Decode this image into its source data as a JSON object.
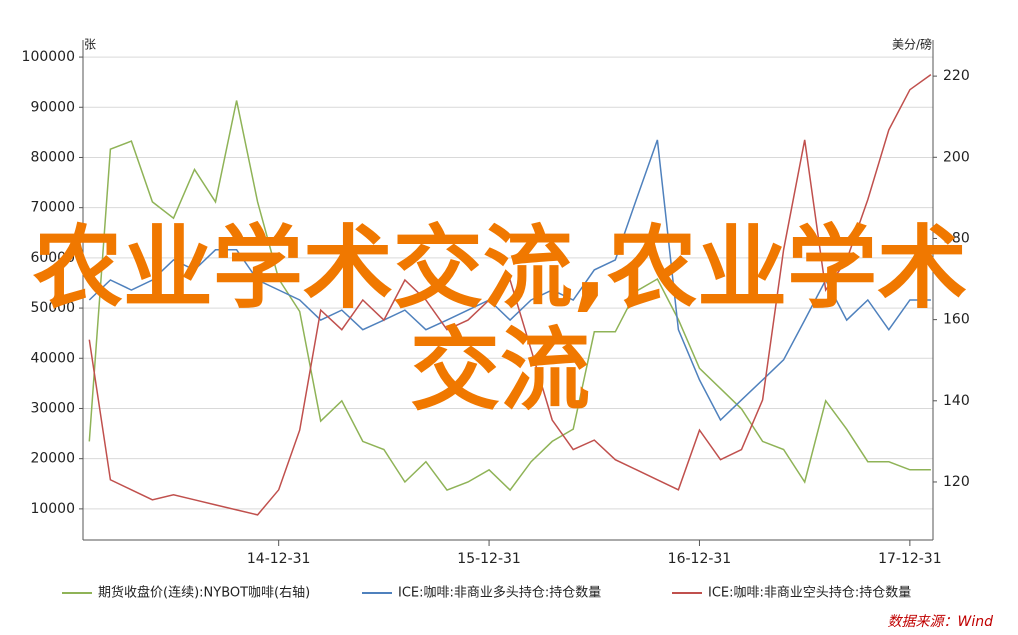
{
  "chart_data": {
    "type": "line",
    "y_label": "张",
    "y2_label": "美分/磅",
    "overlay": "农业学术交流,农业学术交流",
    "source": "数据来源：Wind",
    "x": [
      2014.1,
      2014.2,
      2014.3,
      2014.4,
      2014.5,
      2014.6,
      2014.7,
      2014.8,
      2014.9,
      2015.0,
      2015.1,
      2015.2,
      2015.3,
      2015.4,
      2015.5,
      2015.6,
      2015.7,
      2015.8,
      2015.9,
      2016.0,
      2016.1,
      2016.2,
      2016.3,
      2016.4,
      2016.5,
      2016.6,
      2016.7,
      2016.8,
      2016.9,
      2017.0,
      2017.1,
      2017.2,
      2017.3,
      2017.4,
      2017.5,
      2017.6,
      2017.7,
      2017.8,
      2017.9,
      2018.0,
      2018.1
    ],
    "xlim": [
      2014.07,
      2018.11
    ],
    "xticks": [
      {
        "value": 2015.0,
        "label": "14-12-31"
      },
      {
        "value": 2016.0,
        "label": "15-12-31"
      },
      {
        "value": 2017.0,
        "label": "16-12-31"
      },
      {
        "value": 2018.0,
        "label": "17-12-31"
      }
    ],
    "ylim": [
      3800,
      103400
    ],
    "yticks": [
      10000,
      20000,
      30000,
      40000,
      50000,
      60000,
      70000,
      80000,
      90000,
      100000
    ],
    "y2lim": [
      105.7,
      228.9
    ],
    "y2ticks": [
      120,
      140,
      160,
      180,
      200,
      220
    ],
    "grid": true,
    "series": [
      {
        "name": "期货收盘价(连续):NYBOT咖啡(右轴)",
        "color": "#8fb357",
        "axis": "y2",
        "values": [
          130,
          202,
          204,
          189,
          185,
          197,
          189,
          214,
          189,
          170,
          162,
          135,
          140,
          130,
          128,
          120,
          125,
          118,
          120,
          123,
          118,
          125,
          130,
          133,
          157,
          157,
          167,
          170,
          160,
          148,
          143,
          138,
          130,
          128,
          120,
          140,
          133,
          125,
          125,
          123,
          123
        ]
      },
      {
        "name": "ICE:咖啡:非商业多头持仓:持仓数量",
        "color": "#4f81bd",
        "values": [
          51600,
          55600,
          53600,
          55600,
          59600,
          57600,
          61600,
          61600,
          55600,
          53600,
          51600,
          47600,
          49600,
          45700,
          47600,
          49600,
          45700,
          47600,
          49600,
          51600,
          47600,
          51600,
          53600,
          51600,
          57600,
          59600,
          71600,
          83500,
          45700,
          35700,
          27700,
          31700,
          35700,
          39700,
          47600,
          55600,
          47600,
          51600,
          45700,
          51600,
          51600
        ]
      },
      {
        "name": "ICE:咖啡:非商业空头持仓:持仓数量",
        "color": "#c0504d",
        "values": [
          43700,
          15800,
          13800,
          11800,
          12800,
          11800,
          10800,
          9800,
          8800,
          13800,
          25700,
          49600,
          45700,
          51600,
          47600,
          55600,
          51600,
          45700,
          47600,
          51600,
          55600,
          41700,
          27700,
          21800,
          23700,
          19800,
          17800,
          15800,
          13800,
          25700,
          19800,
          21800,
          31700,
          61600,
          83500,
          53600,
          59600,
          71600,
          85500,
          93500,
          96500
        ]
      }
    ]
  }
}
